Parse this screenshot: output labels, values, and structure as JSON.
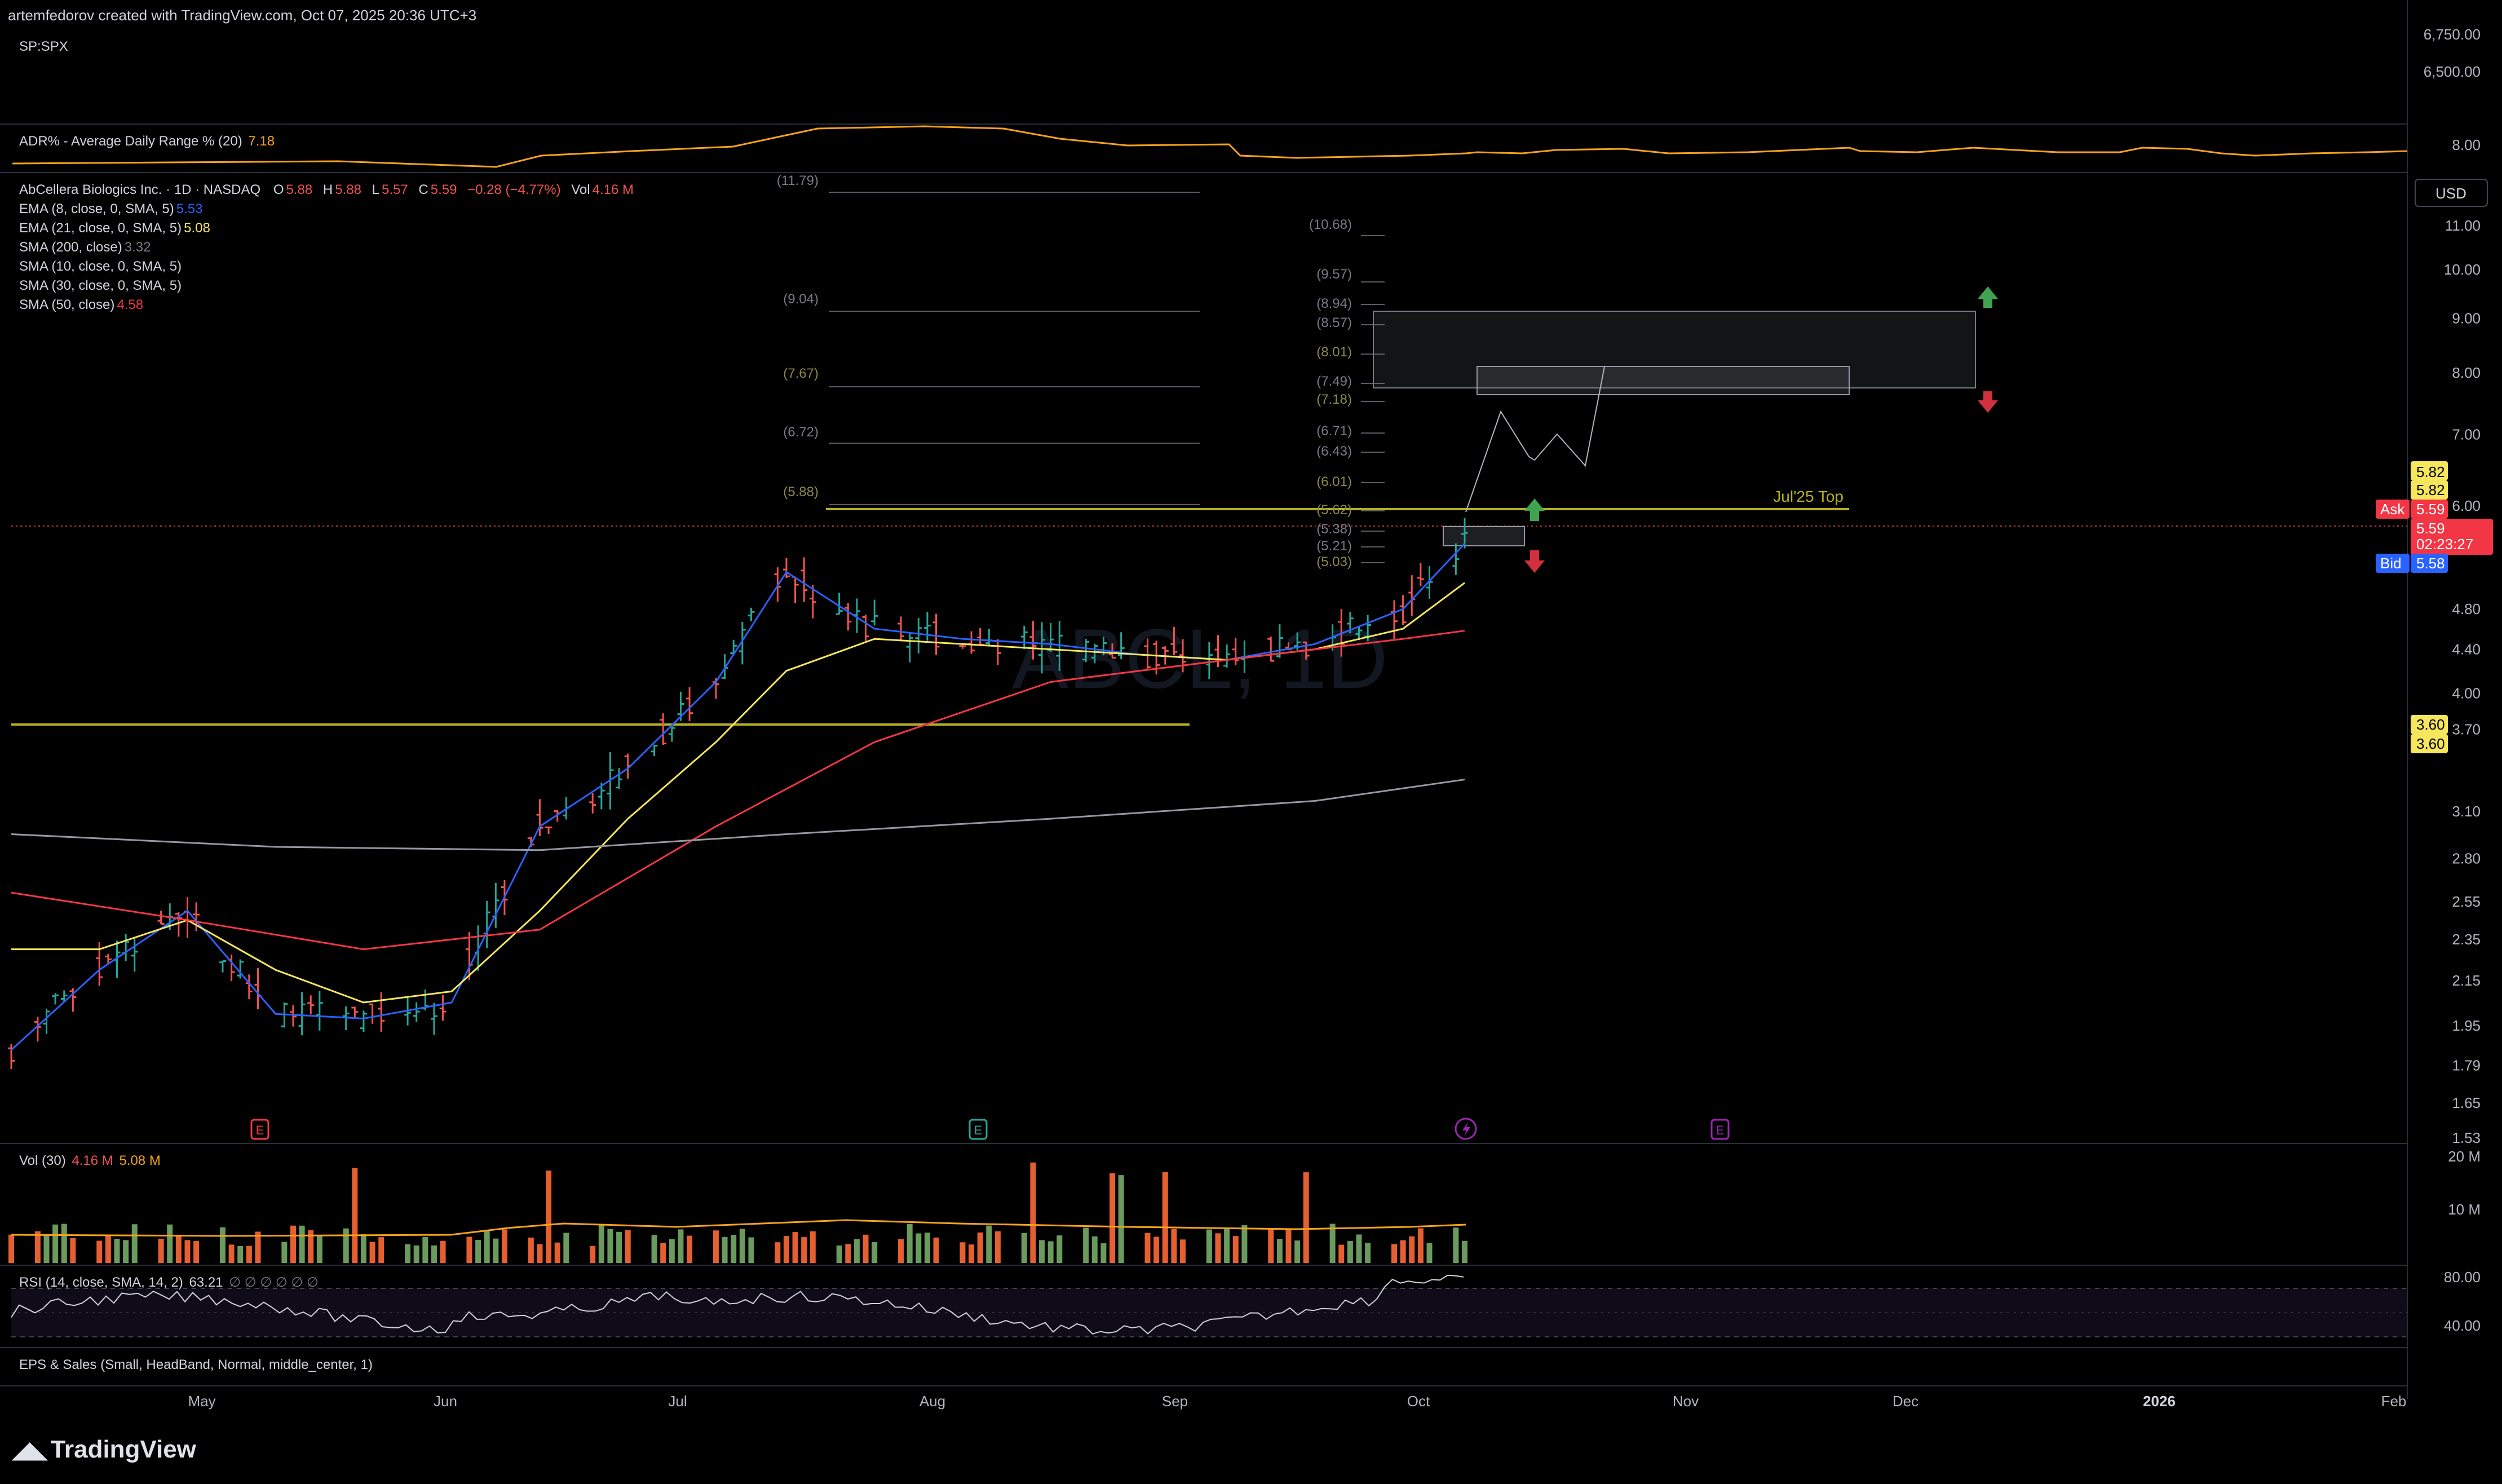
{
  "header": {
    "created_by": "artemfedorov created with TradingView.com, Oct 07, 2025 20:36 UTC+3"
  },
  "panes": {
    "spx": {
      "symbol": "SP:SPX",
      "ticks": [
        "6,750.00",
        "6,500.00"
      ]
    },
    "adr": {
      "name": "ADR% - Average Daily Range % (20)",
      "value": "7.18",
      "tick": "8.00"
    },
    "main": {
      "title": "AbCellera Biologics Inc. · 1D · NASDAQ",
      "ohlc": {
        "o_label": "O",
        "o": "5.88",
        "h_label": "H",
        "h": "5.88",
        "l_label": "L",
        "l": "5.57",
        "c_label": "C",
        "c": "5.59",
        "chg": "−0.28 (−4.77%)",
        "vol_label": "Vol",
        "vol": "4.16 M"
      },
      "indicators": [
        {
          "name": "EMA (8, close, 0, SMA, 5)",
          "value": "5.53",
          "color": "#2962ff"
        },
        {
          "name": "EMA (21, close, 0, SMA, 5)",
          "value": "5.08",
          "color": "#f5e65b"
        },
        {
          "name": "SMA (200, close)",
          "value": "3.32",
          "color": "#9598a1"
        },
        {
          "name": "SMA (10, close, 0, SMA, 5)",
          "value": "",
          "color": "#787b86"
        },
        {
          "name": "SMA (30, close, 0, SMA, 5)",
          "value": "",
          "color": "#787b86"
        },
        {
          "name": "SMA (50, close)",
          "value": "4.58",
          "color": "#f23645"
        }
      ],
      "currency": "USD",
      "watermark": "ABCL, 1D",
      "price_ticks": [
        "11.00",
        "10.00",
        "9.00",
        "8.00",
        "7.00",
        "6.00",
        "4.80",
        "4.40",
        "4.00",
        "3.70",
        "3.10",
        "2.80",
        "2.55",
        "2.35",
        "2.15",
        "1.95",
        "1.79",
        "1.65",
        "1.53"
      ],
      "price_badges": {
        "top1": "5.82",
        "top2": "5.82",
        "ask_label": "Ask",
        "ask": "5.59",
        "last": "5.59",
        "countdown": "02:23:27",
        "bid_label": "Bid",
        "bid": "5.58",
        "support1": "3.60",
        "support2": "3.60"
      },
      "fib_left": [
        "(11.79)",
        "(9.04)",
        "(7.67)",
        "(6.72)",
        "(5.88)"
      ],
      "fib_right": [
        "(10.68)",
        "(9.57)",
        "(8.94)",
        "(8.57)",
        "(8.01)",
        "(7.49)",
        "(7.18)",
        "(6.71)",
        "(6.43)",
        "(6.01)",
        "(5.62)",
        "(5.38)",
        "(5.21)",
        "(5.03)"
      ],
      "annotation": "Jul'25 Top",
      "event_markers": [
        "E",
        "E",
        "E"
      ]
    },
    "volume": {
      "name": "Vol (30)",
      "value1": "4.16 M",
      "value2": "5.08 M",
      "ticks": [
        "20 M",
        "10 M"
      ]
    },
    "rsi": {
      "name": "RSI (14, close, SMA, 14, 2)",
      "value": "63.21",
      "extra": "∅ ∅ ∅ ∅ ∅ ∅",
      "ticks": [
        "80.00",
        "40.00"
      ]
    },
    "eps": {
      "name": "EPS & Sales (Small, HeadBand, Normal, middle_center, 1)"
    }
  },
  "time_axis": [
    "May",
    "Jun",
    "Jul",
    "Aug",
    "Sep",
    "Oct",
    "Nov",
    "Dec",
    "2026",
    "Feb"
  ],
  "footer": {
    "brand": "TradingView"
  },
  "colors": {
    "up": "#26a69a",
    "down": "#ef5350",
    "ema8": "#2962ff",
    "ema21": "#f5e65b",
    "sma50": "#f23645",
    "sma200": "#9598a1",
    "level": "#b5b022"
  },
  "chart_data": {
    "type": "line",
    "series": [
      {
        "name": "EMA (8, close, 0, SMA, 5)",
        "x": [
          "Apr 25",
          "May 5",
          "May 15",
          "May 25",
          "Jun 4",
          "Jun 14",
          "Jun 24",
          "Jul 4",
          "Jul 14",
          "Jul 22",
          "Aug 1",
          "Aug 11",
          "Aug 21",
          "Aug 31",
          "Sep 10",
          "Sep 20",
          "Sep 30",
          "Oct 7"
        ],
        "values": [
          1.85,
          2.2,
          2.5,
          2.0,
          1.98,
          2.05,
          3.0,
          3.4,
          4.1,
          5.2,
          4.6,
          4.5,
          4.45,
          4.35,
          4.3,
          4.45,
          4.8,
          5.53
        ]
      },
      {
        "name": "EMA (21, close, 0, SMA, 5)",
        "x": [
          "Apr 25",
          "May 5",
          "May 15",
          "May 25",
          "Jun 4",
          "Jun 14",
          "Jun 24",
          "Jul 4",
          "Jul 14",
          "Jul 22",
          "Aug 1",
          "Aug 11",
          "Aug 21",
          "Aug 31",
          "Sep 10",
          "Sep 20",
          "Sep 30",
          "Oct 7"
        ],
        "values": [
          2.3,
          2.3,
          2.45,
          2.2,
          2.05,
          2.1,
          2.5,
          3.05,
          3.6,
          4.2,
          4.5,
          4.45,
          4.4,
          4.35,
          4.3,
          4.4,
          4.6,
          5.08
        ]
      },
      {
        "name": "SMA (50, close)",
        "x": [
          "Apr 25",
          "May 15",
          "Jun 4",
          "Jun 24",
          "Jul 14",
          "Aug 1",
          "Aug 21",
          "Sep 10",
          "Sep 30",
          "Oct 7"
        ],
        "values": [
          2.6,
          2.45,
          2.3,
          2.4,
          3.0,
          3.6,
          4.1,
          4.3,
          4.5,
          4.58
        ]
      },
      {
        "name": "SMA (200, close)",
        "x": [
          "Apr 25",
          "May 25",
          "Jun 24",
          "Jul 22",
          "Aug 21",
          "Sep 20",
          "Oct 7"
        ],
        "values": [
          2.95,
          2.87,
          2.85,
          2.95,
          3.05,
          3.17,
          3.32
        ]
      }
    ],
    "levels": [
      {
        "name": "Jul'25 Top",
        "value": 5.6
      },
      {
        "name": "",
        "value": 3.6
      }
    ],
    "ylim": [
      1.5,
      12.5
    ],
    "y_scale": "log",
    "grid": false
  }
}
